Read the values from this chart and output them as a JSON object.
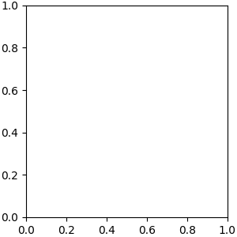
{
  "background_color": "#e8e8e8",
  "figure_size": [
    3.0,
    3.0
  ],
  "dpi": 100,
  "atom_colors": {
    "C": "#000000",
    "N": "#0000ff",
    "O": "#ff0000",
    "S": "#ccaa00",
    "Cl": "#00aa00",
    "H": "#808080"
  },
  "bond_color": "#000000",
  "bond_width": 1.5,
  "font_size_atoms": 7,
  "font_size_small": 5.5
}
